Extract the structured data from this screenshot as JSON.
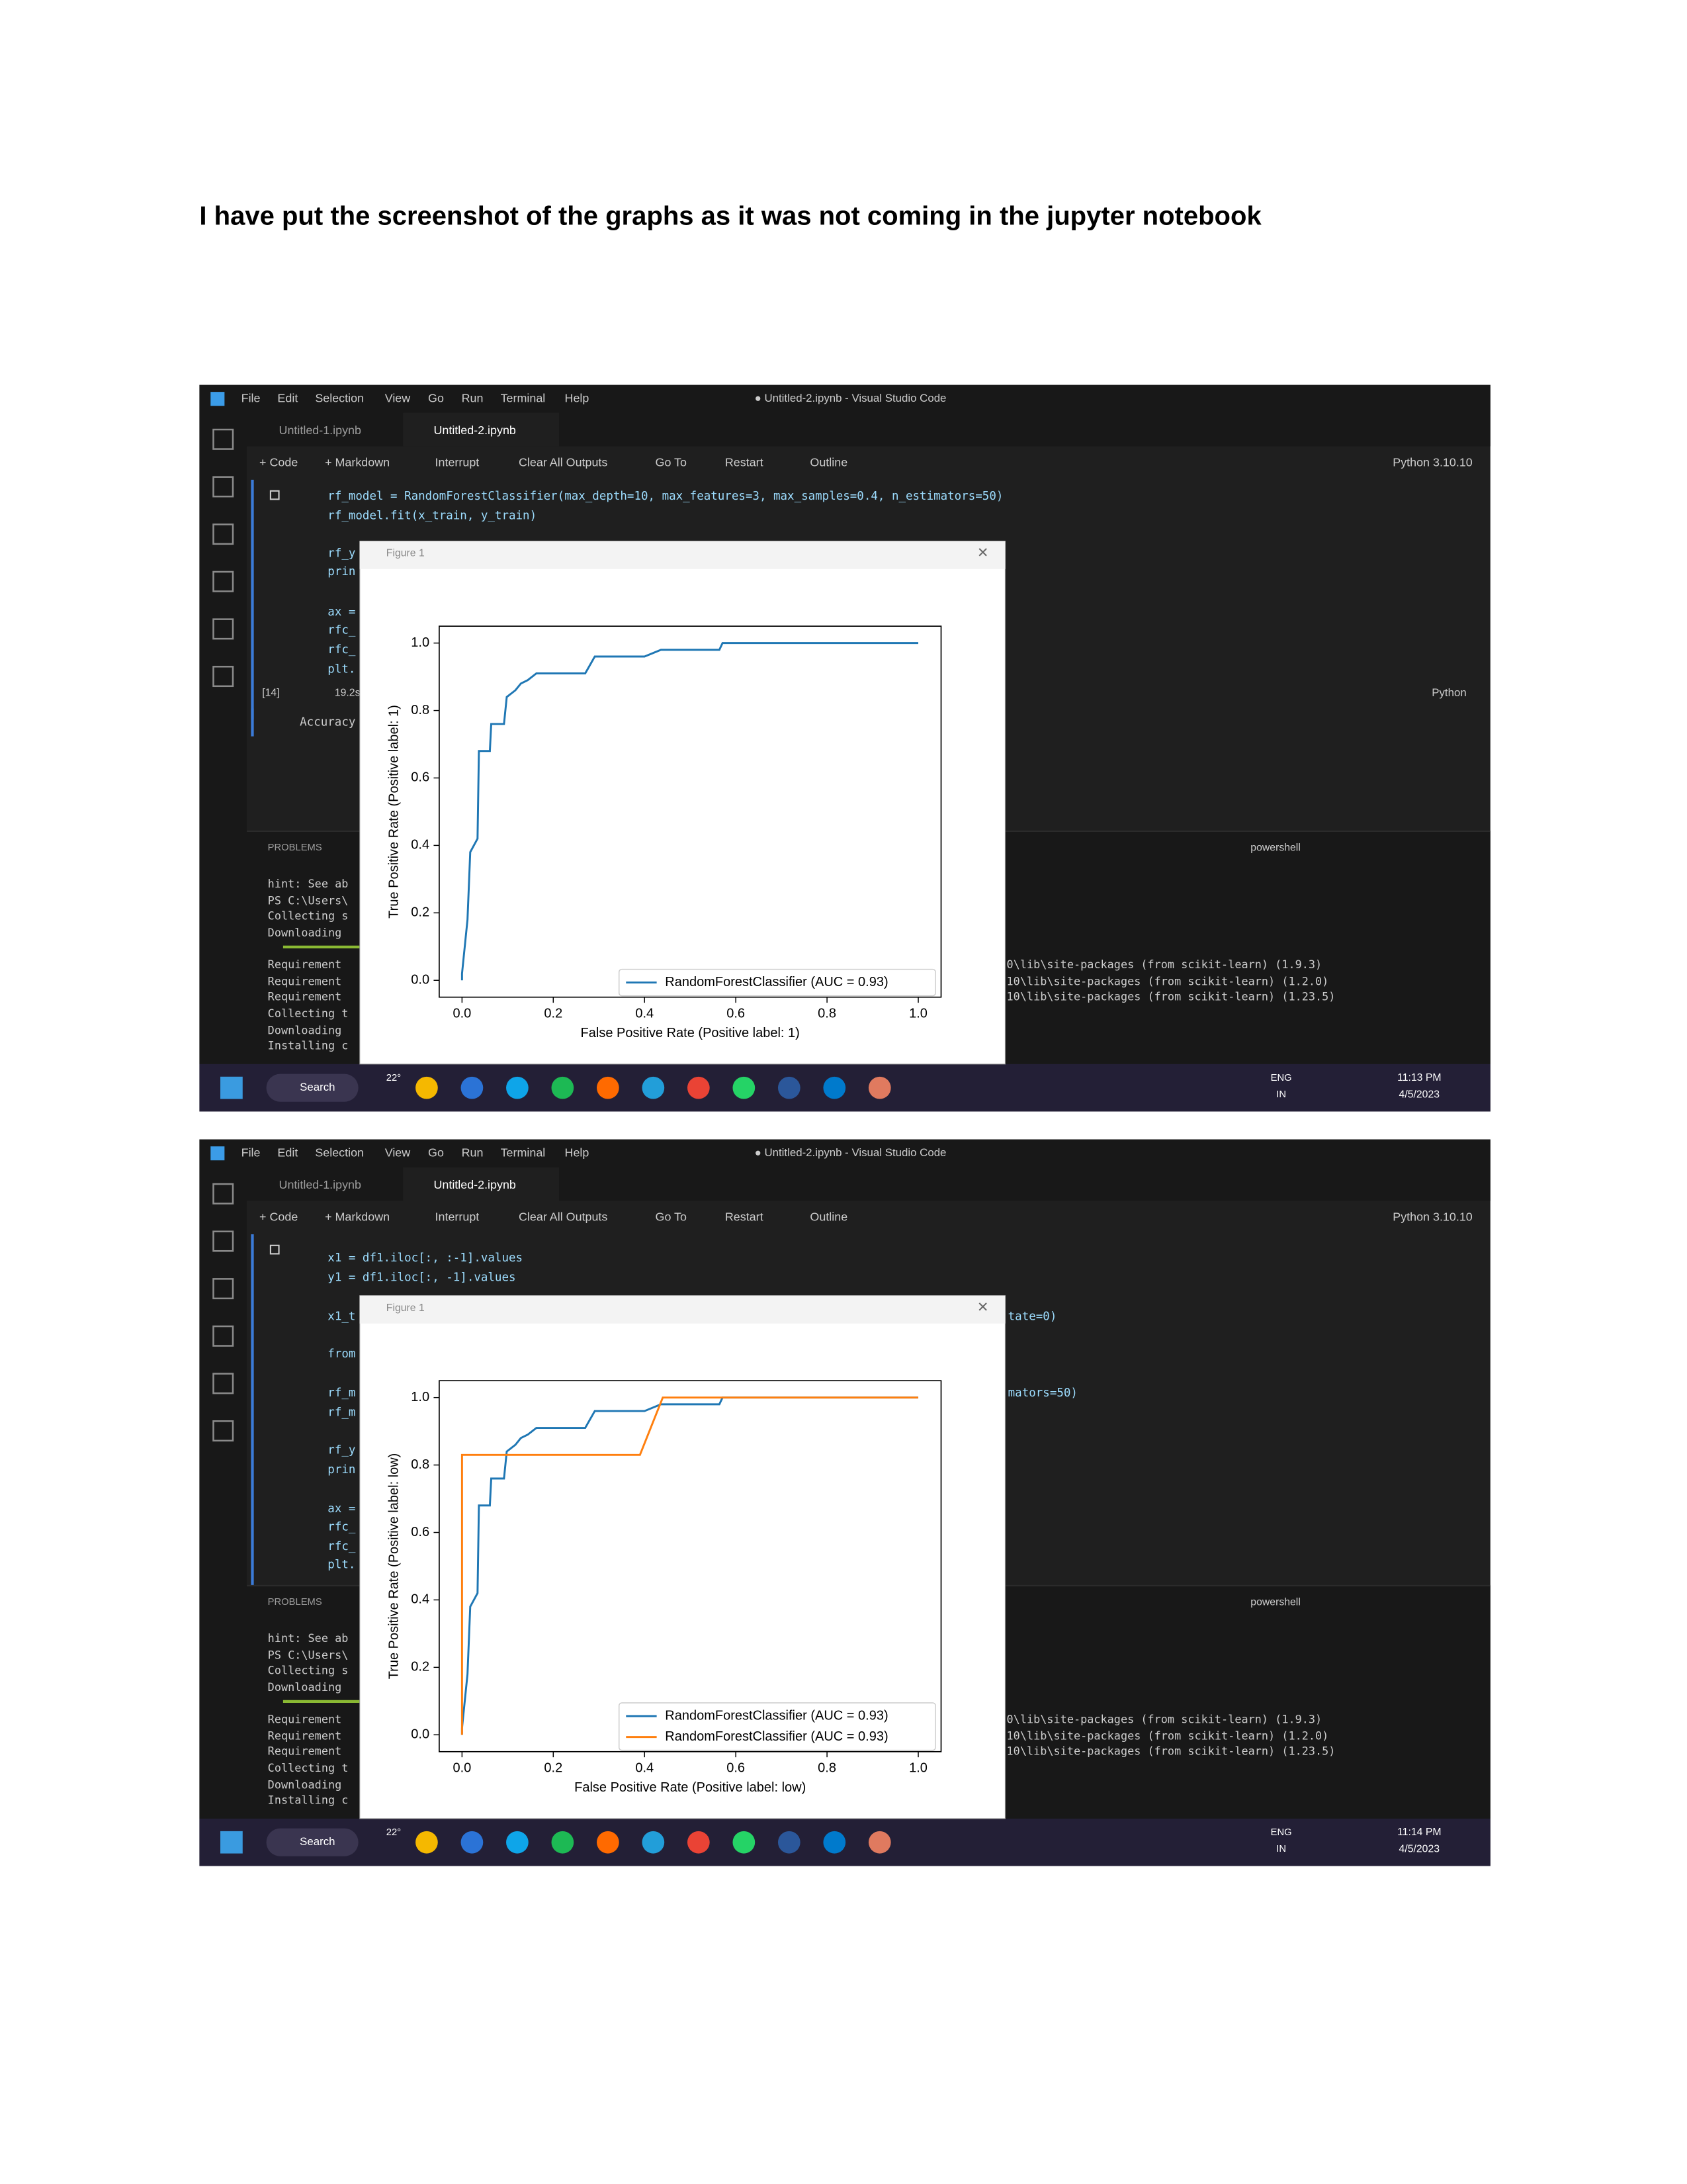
{
  "heading": "I have put the screenshot of the graphs as it was not coming in the jupyter notebook",
  "screenshots": [
    {
      "menu": [
        "File",
        "Edit",
        "Selection",
        "View",
        "Go",
        "Run",
        "Terminal",
        "Help"
      ],
      "window_title": "● Untitled-2.ipynb - Visual Studio Code",
      "tabs": [
        "Untitled-1.ipynb",
        "Untitled-2.ipynb"
      ],
      "toolbar": [
        "+ Code",
        "+ Markdown",
        "Interrupt",
        "Clear All Outputs",
        "Go To",
        "Restart",
        "Outline"
      ],
      "kernel": "Python 3.10.10",
      "code": [
        "rf_model = RandomForestClassifier(max_depth=10, max_features=3, max_samples=0.4, n_estimators=50)",
        "rf_model.fit(x_train, y_train)",
        "rf_y",
        "prin",
        "ax =",
        "rfc_",
        "rfc_",
        "plt."
      ],
      "exec_count": "[14]",
      "duration": "19.2s",
      "language": "Python",
      "output": "Accuracy",
      "figure_title": "Figure 1",
      "panel_tab": "PROBLEMS",
      "shell": "powershell",
      "terminal": [
        "hint: See ab",
        "PS C:\\Users\\",
        "Collecting s",
        "  Downloading",
        "Requirement ",
        "Requirement ",
        "Requirement ",
        "Collecting t",
        "  Downloading",
        "Installing c"
      ],
      "terminal_right": [
        "0\\lib\\site-packages (from scikit-learn) (1.9.3)",
        "10\\lib\\site-packages (from scikit-learn) (1.2.0)",
        "10\\lib\\site-packages (from scikit-learn) (1.23.5)"
      ],
      "taskbar": {
        "search": "Search",
        "temp": "22°",
        "lang": "ENG",
        "region": "IN",
        "time": "11:13 PM",
        "date": "4/5/2023"
      },
      "chart": {
        "type": "line",
        "xlabel": "False Positive Rate (Positive label: 1)",
        "ylabel": "True Positive Rate (Positive label: 1)",
        "xlim": [
          -0.05,
          1.05
        ],
        "ylim": [
          -0.05,
          1.05
        ],
        "xticks": [
          {
            "value": 0,
            "label": "0.0"
          },
          {
            "value": 0.2,
            "label": "0.2"
          },
          {
            "value": 0.4,
            "label": "0.4"
          },
          {
            "value": 0.6,
            "label": "0.6"
          },
          {
            "value": 0.8,
            "label": "0.8"
          },
          {
            "value": 1,
            "label": "1.0"
          }
        ],
        "yticks": [
          {
            "value": 0,
            "label": "0.0"
          },
          {
            "value": 0.2,
            "label": "0.2"
          },
          {
            "value": 0.4,
            "label": "0.4"
          },
          {
            "value": 0.6,
            "label": "0.6"
          },
          {
            "value": 0.8,
            "label": "0.8"
          },
          {
            "value": 1,
            "label": "1.0"
          }
        ],
        "series": [
          {
            "name": "RandomForestClassifier (AUC = 0.93)",
            "color": "#1f77b4",
            "x": [
              0,
              0,
              0.012,
              0.018,
              0.034,
              0.037,
              0.061,
              0.064,
              0.092,
              0.098,
              0.117,
              0.129,
              0.144,
              0.163,
              0.27,
              0.291,
              0.4,
              0.436,
              0.564,
              0.571,
              1.0
            ],
            "values": [
              0,
              0.02,
              0.18,
              0.38,
              0.42,
              0.68,
              0.68,
              0.76,
              0.76,
              0.84,
              0.86,
              0.88,
              0.89,
              0.91,
              0.91,
              0.96,
              0.96,
              0.98,
              0.98,
              1.0,
              1.0
            ]
          }
        ]
      }
    },
    {
      "menu": [
        "File",
        "Edit",
        "Selection",
        "View",
        "Go",
        "Run",
        "Terminal",
        "Help"
      ],
      "window_title": "● Untitled-2.ipynb - Visual Studio Code",
      "tabs": [
        "Untitled-1.ipynb",
        "Untitled-2.ipynb"
      ],
      "toolbar": [
        "+ Code",
        "+ Markdown",
        "Interrupt",
        "Clear All Outputs",
        "Go To",
        "Restart",
        "Outline"
      ],
      "kernel": "Python 3.10.10",
      "code": [
        "x1 = df1.iloc[:, :-1].values",
        "y1 = df1.iloc[:, -1].values",
        "x1_t",
        "from",
        "rf_m",
        "rf_m",
        "rf_y",
        "prin",
        "ax =",
        "rfc_",
        "rfc_",
        "plt."
      ],
      "code_right": [
        "tate=0)",
        "mators=50)"
      ],
      "figure_title": "Figure 1",
      "panel_tab": "PROBLEMS",
      "shell": "powershell",
      "terminal": [
        "hint: See ab",
        "PS C:\\Users\\",
        "Collecting s",
        "  Downloading",
        "Requirement ",
        "Requirement ",
        "Requirement ",
        "Collecting t",
        "  Downloading",
        "Installing c"
      ],
      "terminal_right": [
        "0\\lib\\site-packages (from scikit-learn) (1.9.3)",
        "10\\lib\\site-packages (from scikit-learn) (1.2.0)",
        "10\\lib\\site-packages (from scikit-learn) (1.23.5)"
      ],
      "taskbar": {
        "search": "Search",
        "temp": "22°",
        "lang": "ENG",
        "region": "IN",
        "time": "11:14 PM",
        "date": "4/5/2023"
      },
      "chart": {
        "type": "line",
        "xlabel": "False Positive Rate (Positive label: low)",
        "ylabel": "True Positive Rate (Positive label: low)",
        "xlim": [
          -0.05,
          1.05
        ],
        "ylim": [
          -0.05,
          1.05
        ],
        "xticks": [
          {
            "value": 0,
            "label": "0.0"
          },
          {
            "value": 0.2,
            "label": "0.2"
          },
          {
            "value": 0.4,
            "label": "0.4"
          },
          {
            "value": 0.6,
            "label": "0.6"
          },
          {
            "value": 0.8,
            "label": "0.8"
          },
          {
            "value": 1,
            "label": "1.0"
          }
        ],
        "yticks": [
          {
            "value": 0,
            "label": "0.0"
          },
          {
            "value": 0.2,
            "label": "0.2"
          },
          {
            "value": 0.4,
            "label": "0.4"
          },
          {
            "value": 0.6,
            "label": "0.6"
          },
          {
            "value": 0.8,
            "label": "0.8"
          },
          {
            "value": 1,
            "label": "1.0"
          }
        ],
        "series": [
          {
            "name": "RandomForestClassifier (AUC = 0.93)",
            "color": "#1f77b4",
            "x": [
              0,
              0,
              0.012,
              0.018,
              0.034,
              0.037,
              0.061,
              0.064,
              0.092,
              0.098,
              0.117,
              0.129,
              0.144,
              0.163,
              0.27,
              0.291,
              0.4,
              0.436,
              0.564,
              0.571,
              1.0
            ],
            "values": [
              0,
              0.02,
              0.18,
              0.38,
              0.42,
              0.68,
              0.68,
              0.76,
              0.76,
              0.84,
              0.86,
              0.88,
              0.89,
              0.91,
              0.91,
              0.96,
              0.96,
              0.98,
              0.98,
              1.0,
              1.0
            ]
          },
          {
            "name": "RandomForestClassifier (AUC = 0.93)",
            "color": "#ff7f0e",
            "x": [
              0,
              0,
              0.39,
              0.44,
              1.0
            ],
            "values": [
              0,
              0.83,
              0.83,
              1.0,
              1.0
            ]
          }
        ]
      }
    }
  ]
}
